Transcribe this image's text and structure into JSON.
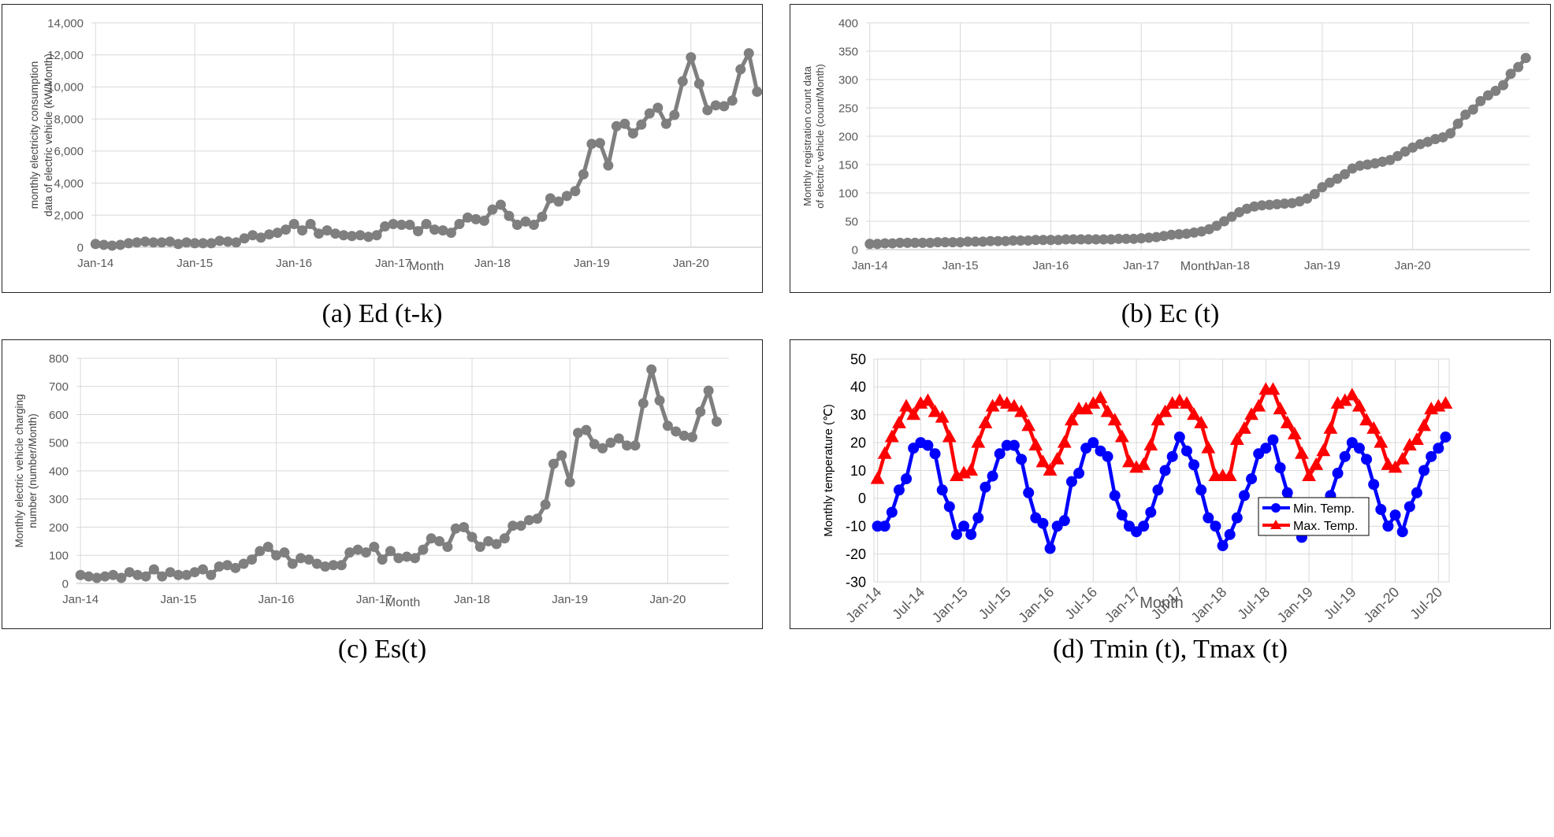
{
  "captions": {
    "a": "(a) Ed (t-k)",
    "b": "(b) Ec (t)",
    "c": "(c) Es(t)",
    "d": "(d) Tmin (t), Tmax (t)"
  },
  "chart_data": [
    {
      "id": "a",
      "type": "line",
      "xlabel": "Month",
      "ylabel": "monthly electricity consumption",
      "ylabel2": "data of electric vehicle (kW/Month)",
      "ylim": [
        0,
        14000
      ],
      "ytick_step": 2000,
      "grid": true,
      "x_tick_labels": [
        "Jan-14",
        "Jan-15",
        "Jan-16",
        "Jan-17",
        "Jan-18",
        "Jan-19",
        "Jan-20"
      ],
      "x_tick_months": [
        0,
        12,
        24,
        36,
        48,
        60,
        72
      ],
      "y_tick_labels": [
        "0",
        "2,000",
        "4,000",
        "6,000",
        "8,000",
        "10,000",
        "12,000",
        "14,000"
      ],
      "series": [
        {
          "color": "#7f7f7f",
          "marker": "circle",
          "values": [
            200,
            150,
            100,
            150,
            250,
            300,
            350,
            300,
            300,
            350,
            200,
            300,
            250,
            250,
            250,
            400,
            350,
            300,
            550,
            750,
            600,
            800,
            900,
            1100,
            1450,
            1050,
            1450,
            850,
            1050,
            850,
            750,
            700,
            750,
            650,
            750,
            1300,
            1450,
            1400,
            1400,
            1000,
            1450,
            1100,
            1050,
            900,
            1450,
            1850,
            1750,
            1650,
            2350,
            2650,
            1950,
            1400,
            1600,
            1400,
            1900,
            3050,
            2850,
            3200,
            3500,
            4550,
            6450,
            6500,
            5100,
            7550,
            7700,
            7100,
            7650,
            8350,
            8700,
            7700,
            8250,
            10350,
            11850,
            10200,
            8550,
            8850,
            8800,
            9150,
            11100,
            12100,
            9700
          ]
        }
      ]
    },
    {
      "id": "b",
      "type": "line",
      "xlabel": "Month",
      "ylabel": "Monthly registration count data",
      "ylabel2": "of electric vehicle (count/Month)",
      "ylim": [
        0,
        400
      ],
      "ytick_step": 50,
      "grid": true,
      "x_tick_labels": [
        "Jan-14",
        "Jan-15",
        "Jan-16",
        "Jan-17",
        "Jan-18",
        "Jan-19",
        "Jan-20"
      ],
      "x_tick_months": [
        0,
        12,
        24,
        36,
        48,
        60,
        72
      ],
      "y_tick_labels": [
        "0",
        "50",
        "100",
        "150",
        "200",
        "250",
        "300",
        "350",
        "400"
      ],
      "series": [
        {
          "color": "#7f7f7f",
          "marker": "circle",
          "values": [
            10,
            10,
            11,
            11,
            12,
            12,
            12,
            12,
            12,
            13,
            13,
            13,
            13,
            14,
            14,
            14,
            15,
            15,
            15,
            16,
            16,
            16,
            17,
            17,
            17,
            17,
            18,
            18,
            18,
            18,
            18,
            18,
            18,
            19,
            19,
            19,
            20,
            21,
            22,
            24,
            26,
            27,
            28,
            30,
            32,
            36,
            42,
            50,
            58,
            66,
            72,
            76,
            78,
            79,
            80,
            81,
            82,
            85,
            90,
            98,
            110,
            118,
            125,
            133,
            143,
            148,
            150,
            152,
            155,
            158,
            165,
            173,
            180,
            186,
            190,
            195,
            198,
            205,
            222,
            238,
            247,
            262,
            272,
            280,
            290,
            310,
            322,
            338
          ]
        }
      ]
    },
    {
      "id": "c",
      "type": "line",
      "xlabel": "Month",
      "ylabel": "Monthly electric vehicle charging",
      "ylabel2": "number (number/Month)",
      "ylim": [
        0,
        800
      ],
      "ytick_step": 100,
      "grid": true,
      "x_tick_labels": [
        "Jan-14",
        "Jan-15",
        "Jan-16",
        "Jan-17",
        "Jan-18",
        "Jan-19",
        "Jan-20"
      ],
      "x_tick_months": [
        0,
        12,
        24,
        36,
        48,
        60,
        72
      ],
      "y_tick_labels": [
        "0",
        "100",
        "200",
        "300",
        "400",
        "500",
        "600",
        "700",
        "800"
      ],
      "series": [
        {
          "color": "#7f7f7f",
          "marker": "circle",
          "values": [
            30,
            25,
            20,
            25,
            30,
            20,
            40,
            30,
            25,
            50,
            25,
            40,
            30,
            30,
            40,
            50,
            30,
            60,
            65,
            55,
            70,
            85,
            115,
            130,
            100,
            110,
            70,
            90,
            85,
            70,
            60,
            65,
            65,
            110,
            120,
            110,
            130,
            85,
            115,
            90,
            95,
            90,
            120,
            160,
            150,
            130,
            195,
            200,
            165,
            130,
            150,
            140,
            160,
            205,
            205,
            225,
            230,
            280,
            425,
            455,
            360,
            535,
            545,
            495,
            480,
            500,
            515,
            490,
            490,
            640,
            760,
            650,
            560,
            540,
            525,
            520,
            610,
            685,
            575
          ]
        }
      ]
    },
    {
      "id": "d",
      "type": "line",
      "xlabel": "Month",
      "ylabel": "Monthly temperature  (℃)",
      "ylim": [
        -30,
        50
      ],
      "ytick_step": 10,
      "grid": true,
      "legend_position": "bottom-right",
      "x_tick_labels": [
        "Jan-14",
        "Jul-14",
        "Jan-15",
        "Jul-15",
        "Jan-16",
        "Jul-16",
        "Jan-17",
        "Jul-17",
        "Jan-18",
        "Jul-18",
        "Jan-19",
        "Jul-19",
        "Jan-20",
        "Jul-20"
      ],
      "x_tick_months": [
        0,
        6,
        12,
        18,
        24,
        30,
        36,
        42,
        48,
        54,
        60,
        66,
        72,
        78
      ],
      "y_tick_labels": [
        "-30",
        "-20",
        "-10",
        "0",
        "10",
        "20",
        "30",
        "40",
        "50"
      ],
      "series": [
        {
          "name": "Min. Temp.",
          "color": "#0000ff",
          "marker": "circle",
          "values": [
            -10,
            -10,
            -5,
            3,
            7,
            18,
            20,
            19,
            16,
            3,
            -3,
            -13,
            -10,
            -13,
            -7,
            4,
            8,
            16,
            19,
            19,
            14,
            2,
            -7,
            -9,
            -18,
            -10,
            -8,
            6,
            9,
            18,
            20,
            17,
            15,
            1,
            -6,
            -10,
            -12,
            -10,
            -5,
            3,
            10,
            15,
            22,
            17,
            12,
            3,
            -7,
            -10,
            -17,
            -13,
            -7,
            1,
            7,
            16,
            18,
            21,
            11,
            2,
            -2,
            -14,
            -10,
            -10,
            -2,
            1,
            9,
            15,
            20,
            18,
            14,
            5,
            -4,
            -10,
            -6,
            -12,
            -3,
            2,
            10,
            15,
            18,
            22
          ]
        },
        {
          "name": "Max. Temp.",
          "color": "#ff0000",
          "marker": "triangle",
          "values": [
            7,
            16,
            22,
            27,
            33,
            30,
            34,
            35,
            31,
            29,
            22,
            8,
            9,
            10,
            20,
            27,
            33,
            35,
            34,
            33,
            31,
            26,
            19,
            13,
            10,
            14,
            20,
            28,
            32,
            32,
            34,
            36,
            31,
            28,
            22,
            13,
            11,
            12,
            19,
            28,
            31,
            34,
            35,
            34,
            30,
            27,
            18,
            8,
            8,
            8,
            21,
            25,
            30,
            33,
            39,
            39,
            32,
            27,
            23,
            16,
            8,
            12,
            17,
            25,
            34,
            35,
            37,
            33,
            28,
            25,
            20,
            12,
            11,
            14,
            19,
            21,
            26,
            32,
            33,
            34
          ]
        }
      ]
    }
  ]
}
